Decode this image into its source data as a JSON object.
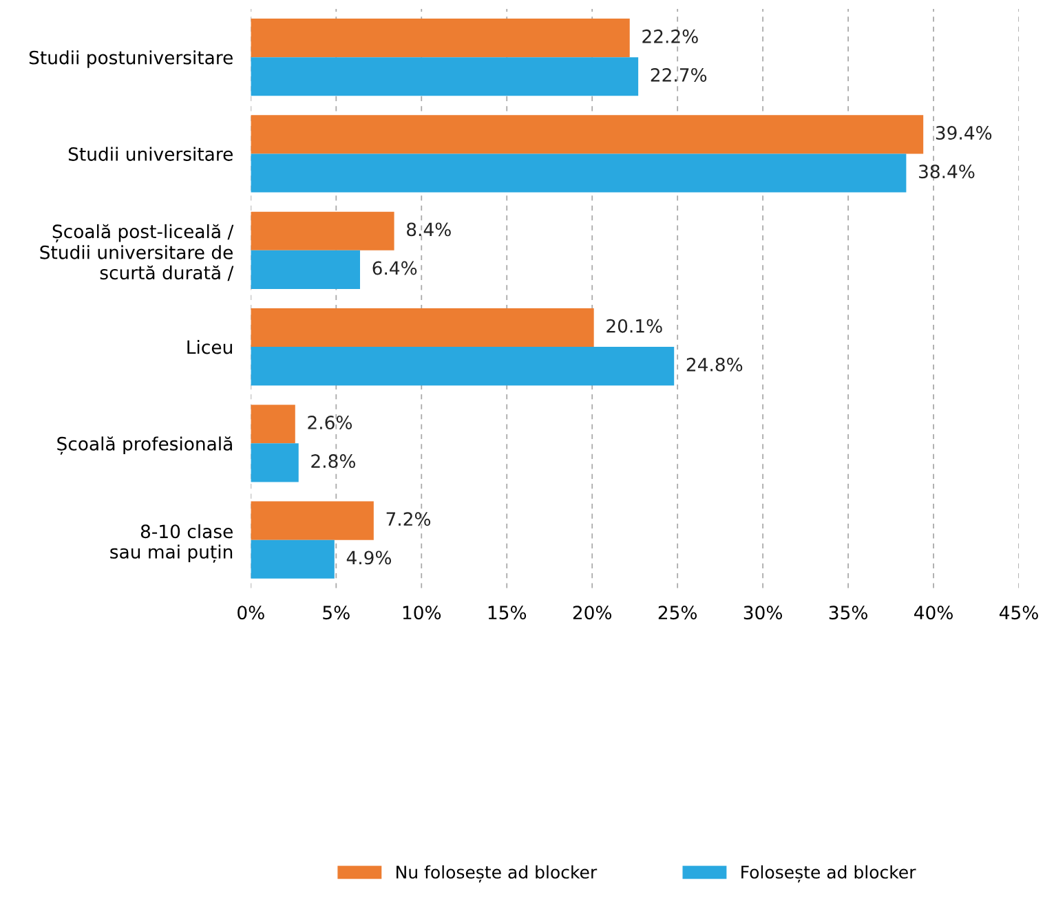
{
  "chart_data": {
    "type": "bar",
    "orientation": "horizontal",
    "categories": [
      "Studii postuniversitare",
      "Studii universitare",
      "Școală post-liceală /\nStudii universitare de\nscurtă durată /",
      "Liceu",
      "Școală profesională",
      "8-10 clase\nsau mai puțin"
    ],
    "series": [
      {
        "name": "Nu folosește ad blocker",
        "color": "#ed7d31",
        "values": [
          22.2,
          39.4,
          8.4,
          20.1,
          2.6,
          7.2
        ],
        "value_labels": [
          "22.2%",
          "39.4%",
          "8.4%",
          "20.1%",
          "2.6%",
          "7.2%"
        ]
      },
      {
        "name": "Folosește ad blocker",
        "color": "#29a8e0",
        "values": [
          22.7,
          38.4,
          6.4,
          24.8,
          2.8,
          4.9
        ],
        "value_labels": [
          "22.7%",
          "38.4%",
          "6.4%",
          "24.8%",
          "2.8%",
          "4.9%"
        ]
      }
    ],
    "xlim": [
      0,
      45
    ],
    "xticks": [
      {
        "value": 0,
        "label": "0%"
      },
      {
        "value": 5,
        "label": "5%"
      },
      {
        "value": 10,
        "label": "10%"
      },
      {
        "value": 15,
        "label": "15%"
      },
      {
        "value": 20,
        "label": "20%"
      },
      {
        "value": 25,
        "label": "25%"
      },
      {
        "value": 30,
        "label": "30%"
      },
      {
        "value": 35,
        "label": "35%"
      },
      {
        "value": 40,
        "label": "40%"
      },
      {
        "value": 45,
        "label": "45%"
      }
    ],
    "grid": "x",
    "legend": "bottom"
  }
}
